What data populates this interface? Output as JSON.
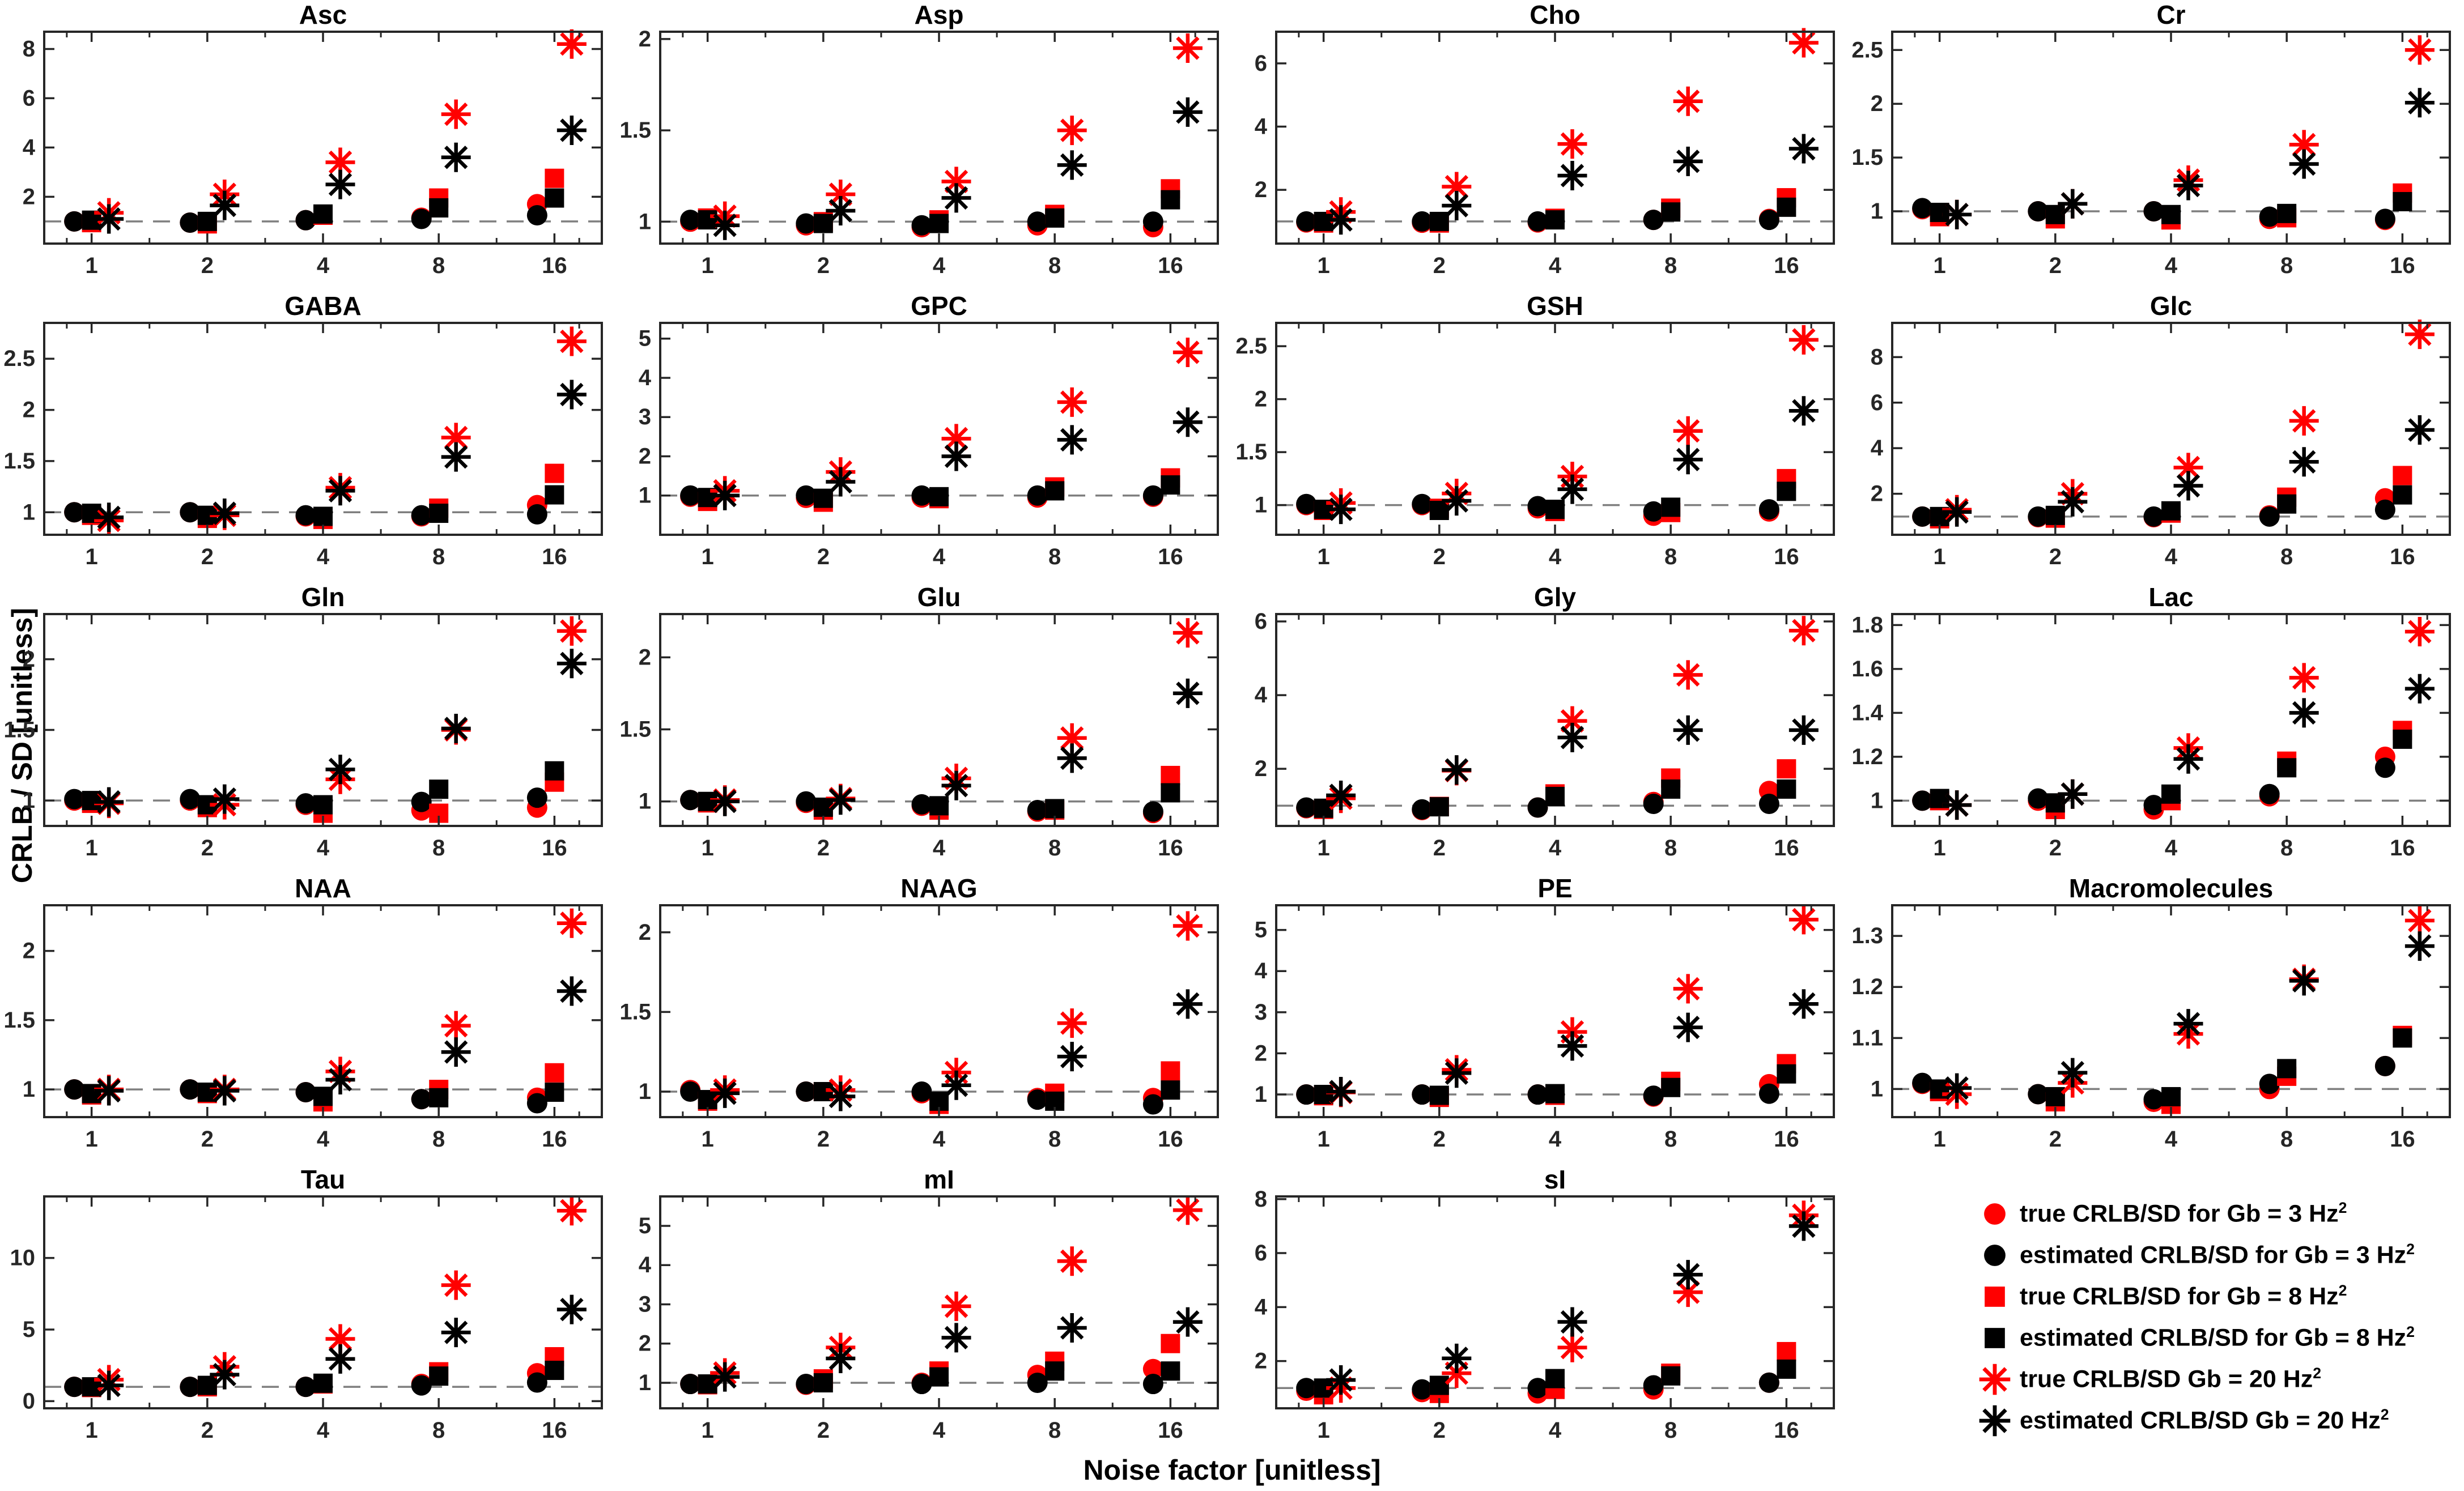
{
  "labels": {
    "ylabel": "CRLB / SD [unitless]",
    "xlabel": "Noise factor [unitless]"
  },
  "colors": {
    "true_series": "#ff0000",
    "estimated_series": "#000000",
    "axis": "#262626",
    "reference_line": "#7f7f7f",
    "background": "#ffffff"
  },
  "legend": {
    "items": [
      {
        "text": "true CRLB/SD for Gb = 3 Hz",
        "sup": "2",
        "marker": "circle",
        "color": "#ff0000"
      },
      {
        "text": "estimated CRLB/SD for Gb = 3 Hz",
        "sup": "2",
        "marker": "circle",
        "color": "#000000"
      },
      {
        "text": "true CRLB/SD for Gb = 8 Hz",
        "sup": "2",
        "marker": "square",
        "color": "#ff0000"
      },
      {
        "text": "estimated CRLB/SD for Gb = 8 Hz",
        "sup": "2",
        "marker": "square",
        "color": "#000000"
      },
      {
        "text": "true CRLB/SD Gb = 20 Hz",
        "sup": "2",
        "marker": "star",
        "color": "#ff0000"
      },
      {
        "text": "estimated CRLB/SD Gb = 20 Hz",
        "sup": "2",
        "marker": "star",
        "color": "#000000"
      }
    ]
  },
  "chart_data": {
    "type": "scatter",
    "x": [
      1,
      2,
      4,
      8,
      16
    ],
    "x_scale": "log2",
    "xlabel": "Noise factor [unitless]",
    "ylabel": "CRLB / SD [unitless]",
    "reference_y": 1,
    "grid": false,
    "legend_position": "bottom-right-cell",
    "series_names": [
      "true CRLB/SD for Gb = 3 Hz2",
      "estimated CRLB/SD for Gb = 3 Hz2",
      "true CRLB/SD for Gb = 8 Hz2",
      "estimated CRLB/SD for Gb = 8 Hz2",
      "true CRLB/SD Gb = 20 Hz2",
      "estimated CRLB/SD Gb = 20 Hz2"
    ],
    "markers": [
      {
        "shape": "circle",
        "color": "#ff0000"
      },
      {
        "shape": "circle",
        "color": "#000000"
      },
      {
        "shape": "square",
        "color": "#ff0000"
      },
      {
        "shape": "square",
        "color": "#000000"
      },
      {
        "shape": "star",
        "color": "#ff0000"
      },
      {
        "shape": "star",
        "color": "#000000"
      }
    ],
    "subplots": [
      {
        "title": "Asc",
        "ylim": [
          0.1,
          8.7
        ],
        "yticks": [
          2,
          4,
          6,
          8
        ],
        "values": [
          [
            1.0,
            0.95,
            1.05,
            1.15,
            1.7
          ],
          [
            1.0,
            0.95,
            1.05,
            1.1,
            1.25
          ],
          [
            0.95,
            0.9,
            1.25,
            1.95,
            2.75
          ],
          [
            1.05,
            1.0,
            1.3,
            1.55,
            1.95
          ],
          [
            1.35,
            2.1,
            3.4,
            5.35,
            8.2
          ],
          [
            1.1,
            1.65,
            2.5,
            3.6,
            4.7
          ]
        ]
      },
      {
        "title": "Asp",
        "ylim": [
          0.88,
          2.04
        ],
        "yticks": [
          1,
          1.5,
          2
        ],
        "values": [
          [
            1.0,
            0.98,
            0.97,
            0.98,
            0.97
          ],
          [
            1.01,
            0.99,
            0.98,
            1.0,
            1.0
          ],
          [
            1.02,
            1.0,
            1.01,
            1.04,
            1.18
          ],
          [
            1.01,
            0.99,
            0.99,
            1.02,
            1.12
          ],
          [
            1.03,
            1.15,
            1.22,
            1.5,
            1.95
          ],
          [
            0.98,
            1.06,
            1.13,
            1.31,
            1.6
          ]
        ]
      },
      {
        "title": "Cho",
        "ylim": [
          0.3,
          7.0
        ],
        "yticks": [
          2,
          4,
          6
        ],
        "values": [
          [
            0.97,
            0.96,
            0.97,
            1.05,
            1.08
          ],
          [
            1.0,
            1.0,
            1.0,
            1.05,
            1.05
          ],
          [
            0.95,
            0.95,
            1.1,
            1.42,
            1.75
          ],
          [
            1.0,
            1.0,
            1.05,
            1.3,
            1.45
          ],
          [
            1.3,
            2.1,
            3.45,
            4.8,
            6.65
          ],
          [
            1.05,
            1.5,
            2.45,
            2.9,
            3.3
          ]
        ]
      },
      {
        "title": "Cr",
        "ylim": [
          0.7,
          2.67
        ],
        "yticks": [
          1,
          1.5,
          2,
          2.5
        ],
        "values": [
          [
            1.02,
            1.0,
            1.0,
            0.93,
            0.92
          ],
          [
            1.03,
            1.0,
            1.0,
            0.95,
            0.93
          ],
          [
            0.95,
            0.93,
            0.92,
            0.94,
            1.17
          ],
          [
            0.99,
            0.97,
            0.97,
            0.98,
            1.09
          ],
          [
            0.97,
            1.07,
            1.29,
            1.62,
            2.5
          ],
          [
            0.97,
            1.07,
            1.24,
            1.44,
            2.01
          ]
        ]
      },
      {
        "title": "GABA",
        "ylim": [
          0.78,
          2.85
        ],
        "yticks": [
          1,
          1.5,
          2,
          2.5
        ],
        "values": [
          [
            1.0,
            1.0,
            0.96,
            0.96,
            1.07
          ],
          [
            1.0,
            1.0,
            0.97,
            0.97,
            0.98
          ],
          [
            0.97,
            0.94,
            0.93,
            1.04,
            1.38
          ],
          [
            0.99,
            0.97,
            0.96,
            0.99,
            1.17
          ],
          [
            0.92,
            0.97,
            1.24,
            1.73,
            2.67
          ],
          [
            0.95,
            0.99,
            1.21,
            1.54,
            2.15
          ]
        ]
      },
      {
        "title": "GPC",
        "ylim": [
          0.0,
          5.4
        ],
        "yticks": [
          1,
          2,
          3,
          4,
          5
        ],
        "values": [
          [
            0.97,
            0.94,
            0.95,
            0.95,
            0.97
          ],
          [
            1.0,
            1.0,
            1.0,
            1.0,
            1.0
          ],
          [
            0.85,
            0.83,
            0.92,
            1.22,
            1.45
          ],
          [
            0.95,
            0.93,
            0.97,
            1.12,
            1.27
          ],
          [
            1.12,
            1.6,
            2.45,
            3.38,
            4.65
          ],
          [
            1.0,
            1.35,
            2.0,
            2.42,
            2.87
          ]
        ]
      },
      {
        "title": "GSH",
        "ylim": [
          0.72,
          2.72
        ],
        "yticks": [
          1,
          1.5,
          2,
          2.5
        ],
        "values": [
          [
            1.0,
            1.0,
            0.97,
            0.9,
            0.94
          ],
          [
            1.01,
            1.01,
            0.99,
            0.94,
            0.96
          ],
          [
            0.95,
            0.97,
            0.94,
            0.93,
            1.25
          ],
          [
            0.96,
            0.95,
            0.96,
            0.98,
            1.13
          ],
          [
            1.02,
            1.11,
            1.27,
            1.7,
            2.56
          ],
          [
            0.96,
            1.04,
            1.15,
            1.43,
            1.89
          ]
        ]
      },
      {
        "title": "Glc",
        "ylim": [
          0.2,
          9.5
        ],
        "yticks": [
          2,
          4,
          6,
          8
        ],
        "values": [
          [
            1.0,
            0.97,
            0.97,
            1.05,
            1.8
          ],
          [
            1.0,
            1.0,
            1.0,
            1.0,
            1.3
          ],
          [
            0.9,
            0.93,
            1.15,
            1.85,
            2.8
          ],
          [
            1.0,
            1.05,
            1.25,
            1.55,
            1.95
          ],
          [
            1.3,
            2.0,
            3.15,
            5.2,
            9.0
          ],
          [
            1.2,
            1.65,
            2.35,
            3.4,
            4.8
          ]
        ]
      },
      {
        "title": "Gln",
        "ylim": [
          0.82,
          2.32
        ],
        "yticks": [
          1,
          1.5,
          2
        ],
        "values": [
          [
            1.0,
            1.0,
            0.97,
            0.93,
            0.95
          ],
          [
            1.01,
            1.01,
            0.98,
            0.99,
            1.02
          ],
          [
            0.98,
            0.95,
            0.91,
            0.91,
            1.13
          ],
          [
            1.0,
            0.97,
            0.97,
            1.08,
            1.21
          ],
          [
            0.98,
            0.97,
            1.15,
            1.5,
            2.2
          ],
          [
            0.99,
            1.01,
            1.22,
            1.51,
            1.97
          ]
        ]
      },
      {
        "title": "Glu",
        "ylim": [
          0.83,
          2.3
        ],
        "yticks": [
          1,
          1.5,
          2
        ],
        "values": [
          [
            1.01,
            0.99,
            0.97,
            0.93,
            0.92
          ],
          [
            1.01,
            1.0,
            0.98,
            0.94,
            0.93
          ],
          [
            0.99,
            0.94,
            0.94,
            0.94,
            1.18
          ],
          [
            1.0,
            0.96,
            0.97,
            0.95,
            1.06
          ],
          [
            1.01,
            1.02,
            1.16,
            1.44,
            2.17
          ],
          [
            1.0,
            1.01,
            1.11,
            1.3,
            1.75
          ]
        ]
      },
      {
        "title": "Gly",
        "ylim": [
          0.45,
          6.2
        ],
        "yticks": [
          2,
          4,
          6
        ],
        "values": [
          [
            0.93,
            0.88,
            0.95,
            1.1,
            1.4
          ],
          [
            0.95,
            0.9,
            0.95,
            1.05,
            1.05
          ],
          [
            0.9,
            0.98,
            1.32,
            1.75,
            2.0
          ],
          [
            0.93,
            0.97,
            1.25,
            1.45,
            1.45
          ],
          [
            1.2,
            1.95,
            3.3,
            4.55,
            5.75
          ],
          [
            1.28,
            1.97,
            2.85,
            3.05,
            3.05
          ]
        ]
      },
      {
        "title": "Lac",
        "ylim": [
          0.885,
          1.85
        ],
        "yticks": [
          1,
          1.2,
          1.4,
          1.6,
          1.8
        ],
        "values": [
          [
            1.0,
            1.0,
            0.96,
            1.02,
            1.2
          ],
          [
            1.0,
            1.01,
            0.98,
            1.03,
            1.15
          ],
          [
            1.0,
            0.96,
            1.0,
            1.18,
            1.32
          ],
          [
            1.01,
            0.99,
            1.03,
            1.15,
            1.28
          ],
          [
            0.98,
            1.03,
            1.24,
            1.56,
            1.77
          ],
          [
            0.98,
            1.03,
            1.19,
            1.4,
            1.51
          ]
        ]
      },
      {
        "title": "NAA",
        "ylim": [
          0.8,
          2.33
        ],
        "yticks": [
          1,
          1.5,
          2
        ],
        "values": [
          [
            1.0,
            1.0,
            0.98,
            0.93,
            0.94
          ],
          [
            1.0,
            1.0,
            0.98,
            0.93,
            0.9
          ],
          [
            0.96,
            0.97,
            0.91,
            1.0,
            1.12
          ],
          [
            0.97,
            0.98,
            0.95,
            0.94,
            0.98
          ],
          [
            1.0,
            1.0,
            1.13,
            1.46,
            2.2
          ],
          [
            0.99,
            0.99,
            1.07,
            1.27,
            1.71
          ]
        ]
      },
      {
        "title": "NAAG",
        "ylim": [
          0.84,
          2.17
        ],
        "yticks": [
          1,
          1.5,
          2
        ],
        "values": [
          [
            1.01,
            1.0,
            0.99,
            0.96,
            0.96
          ],
          [
            1.0,
            1.0,
            1.0,
            0.95,
            0.92
          ],
          [
            0.94,
            1.0,
            0.92,
            0.99,
            1.13
          ],
          [
            0.95,
            1.0,
            0.94,
            0.94,
            1.01
          ],
          [
            1.01,
            1.01,
            1.12,
            1.43,
            2.04
          ],
          [
            0.99,
            0.97,
            1.04,
            1.22,
            1.55
          ]
        ]
      },
      {
        "title": "PE",
        "ylim": [
          0.45,
          5.6
        ],
        "yticks": [
          1,
          2,
          3,
          4,
          5
        ],
        "values": [
          [
            1.0,
            1.0,
            1.0,
            0.95,
            1.25
          ],
          [
            1.0,
            1.0,
            1.0,
            0.97,
            1.02
          ],
          [
            0.97,
            0.93,
            0.98,
            1.32,
            1.75
          ],
          [
            1.0,
            0.98,
            1.02,
            1.17,
            1.5
          ],
          [
            1.05,
            1.6,
            2.52,
            3.57,
            5.25
          ],
          [
            1.07,
            1.52,
            2.18,
            2.63,
            3.2
          ]
        ]
      },
      {
        "title": "Macromolecules",
        "ylim": [
          0.945,
          1.36
        ],
        "yticks": [
          1,
          1.1,
          1.2,
          1.3
        ],
        "values": [
          [
            1.01,
            0.99,
            0.975,
            1.0,
            1.045
          ],
          [
            1.012,
            0.99,
            0.98,
            1.01,
            1.045
          ],
          [
            0.995,
            0.975,
            0.97,
            1.025,
            1.105
          ],
          [
            1.0,
            0.985,
            0.985,
            1.04,
            1.1
          ],
          [
            0.99,
            1.012,
            1.108,
            1.215,
            1.33
          ],
          [
            1.002,
            1.032,
            1.128,
            1.212,
            1.28
          ]
        ]
      },
      {
        "title": "Tau",
        "ylim": [
          -0.5,
          14.3
        ],
        "yticks": [
          0,
          5,
          10
        ],
        "values": [
          [
            1.0,
            1.0,
            1.0,
            1.2,
            1.95
          ],
          [
            1.0,
            1.0,
            1.0,
            1.1,
            1.3
          ],
          [
            0.95,
            1.0,
            1.2,
            2.05,
            3.1
          ],
          [
            1.0,
            1.1,
            1.25,
            1.75,
            2.15
          ],
          [
            1.5,
            2.4,
            4.35,
            8.1,
            13.3
          ],
          [
            1.1,
            1.85,
            2.95,
            4.8,
            6.4
          ]
        ]
      },
      {
        "title": "mI",
        "ylim": [
          0.35,
          5.75
        ],
        "yticks": [
          1,
          2,
          3,
          4,
          5
        ],
        "values": [
          [
            0.97,
            0.95,
            1.0,
            1.2,
            1.35
          ],
          [
            0.97,
            0.97,
            0.97,
            1.0,
            0.97
          ],
          [
            0.95,
            1.1,
            1.3,
            1.55,
            2.0
          ],
          [
            0.97,
            1.0,
            1.15,
            1.3,
            1.3
          ],
          [
            1.25,
            1.9,
            2.95,
            4.1,
            5.4
          ],
          [
            1.15,
            1.62,
            2.15,
            2.4,
            2.55
          ]
        ]
      },
      {
        "title": "sI",
        "ylim": [
          0.25,
          8.1
        ],
        "yticks": [
          2,
          4,
          6,
          8
        ],
        "values": [
          [
            0.9,
            0.85,
            0.8,
            0.95,
            1.2
          ],
          [
            1.0,
            0.95,
            1.0,
            1.1,
            1.2
          ],
          [
            0.75,
            0.8,
            0.95,
            1.55,
            2.35
          ],
          [
            1.0,
            1.1,
            1.35,
            1.45,
            1.7
          ],
          [
            1.0,
            1.55,
            2.5,
            4.55,
            7.4
          ],
          [
            1.3,
            2.1,
            3.45,
            5.2,
            7.0
          ]
        ]
      }
    ]
  }
}
